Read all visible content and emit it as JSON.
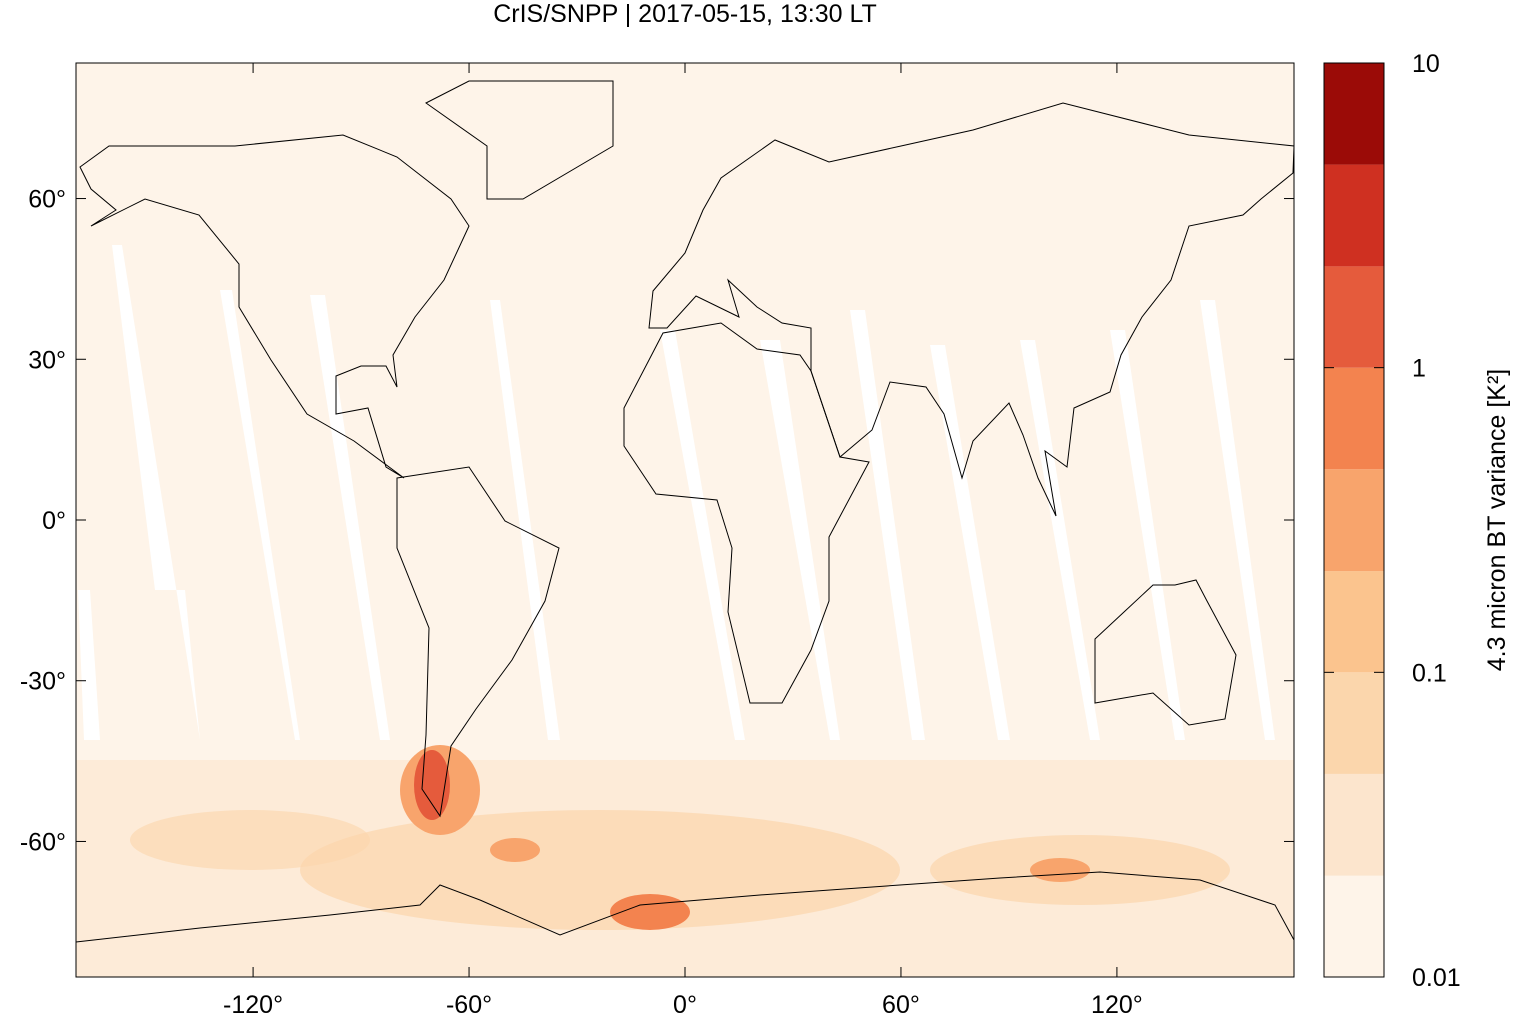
{
  "chart_data": {
    "type": "map",
    "title": "CrIS/SNPP | 2017-05-15, 13:30 LT",
    "xlim": [
      -169.2,
      169.2
    ],
    "ylim": [
      -85.3,
      85.3
    ],
    "xticks": [
      {
        "value": -120,
        "label": "-120°"
      },
      {
        "value": -60,
        "label": "-60°"
      },
      {
        "value": 0,
        "label": "0°"
      },
      {
        "value": 60,
        "label": "60°"
      },
      {
        "value": 120,
        "label": "120°"
      }
    ],
    "yticks": [
      {
        "value": 60,
        "label": "60°"
      },
      {
        "value": 30,
        "label": "30°"
      },
      {
        "value": 0,
        "label": "0°"
      },
      {
        "value": -30,
        "label": "-30°"
      },
      {
        "value": -60,
        "label": "-60°"
      }
    ],
    "colorbar": {
      "label": "4.3 micron BT variance [K²]",
      "log": true,
      "lim": [
        0.01,
        10
      ],
      "ticks": [
        0.01,
        0.1,
        1,
        10
      ],
      "levels": [
        0.01,
        0.0215,
        0.0464,
        0.1,
        0.215,
        0.464,
        1,
        2.15,
        4.64,
        10
      ],
      "colors": [
        "#fef4e9",
        "#fce5cd",
        "#fbd6ac",
        "#fbc48e",
        "#f8a46c",
        "#f3834f",
        "#e55b3c",
        "#cf3021",
        "#9b0b07"
      ]
    }
  }
}
